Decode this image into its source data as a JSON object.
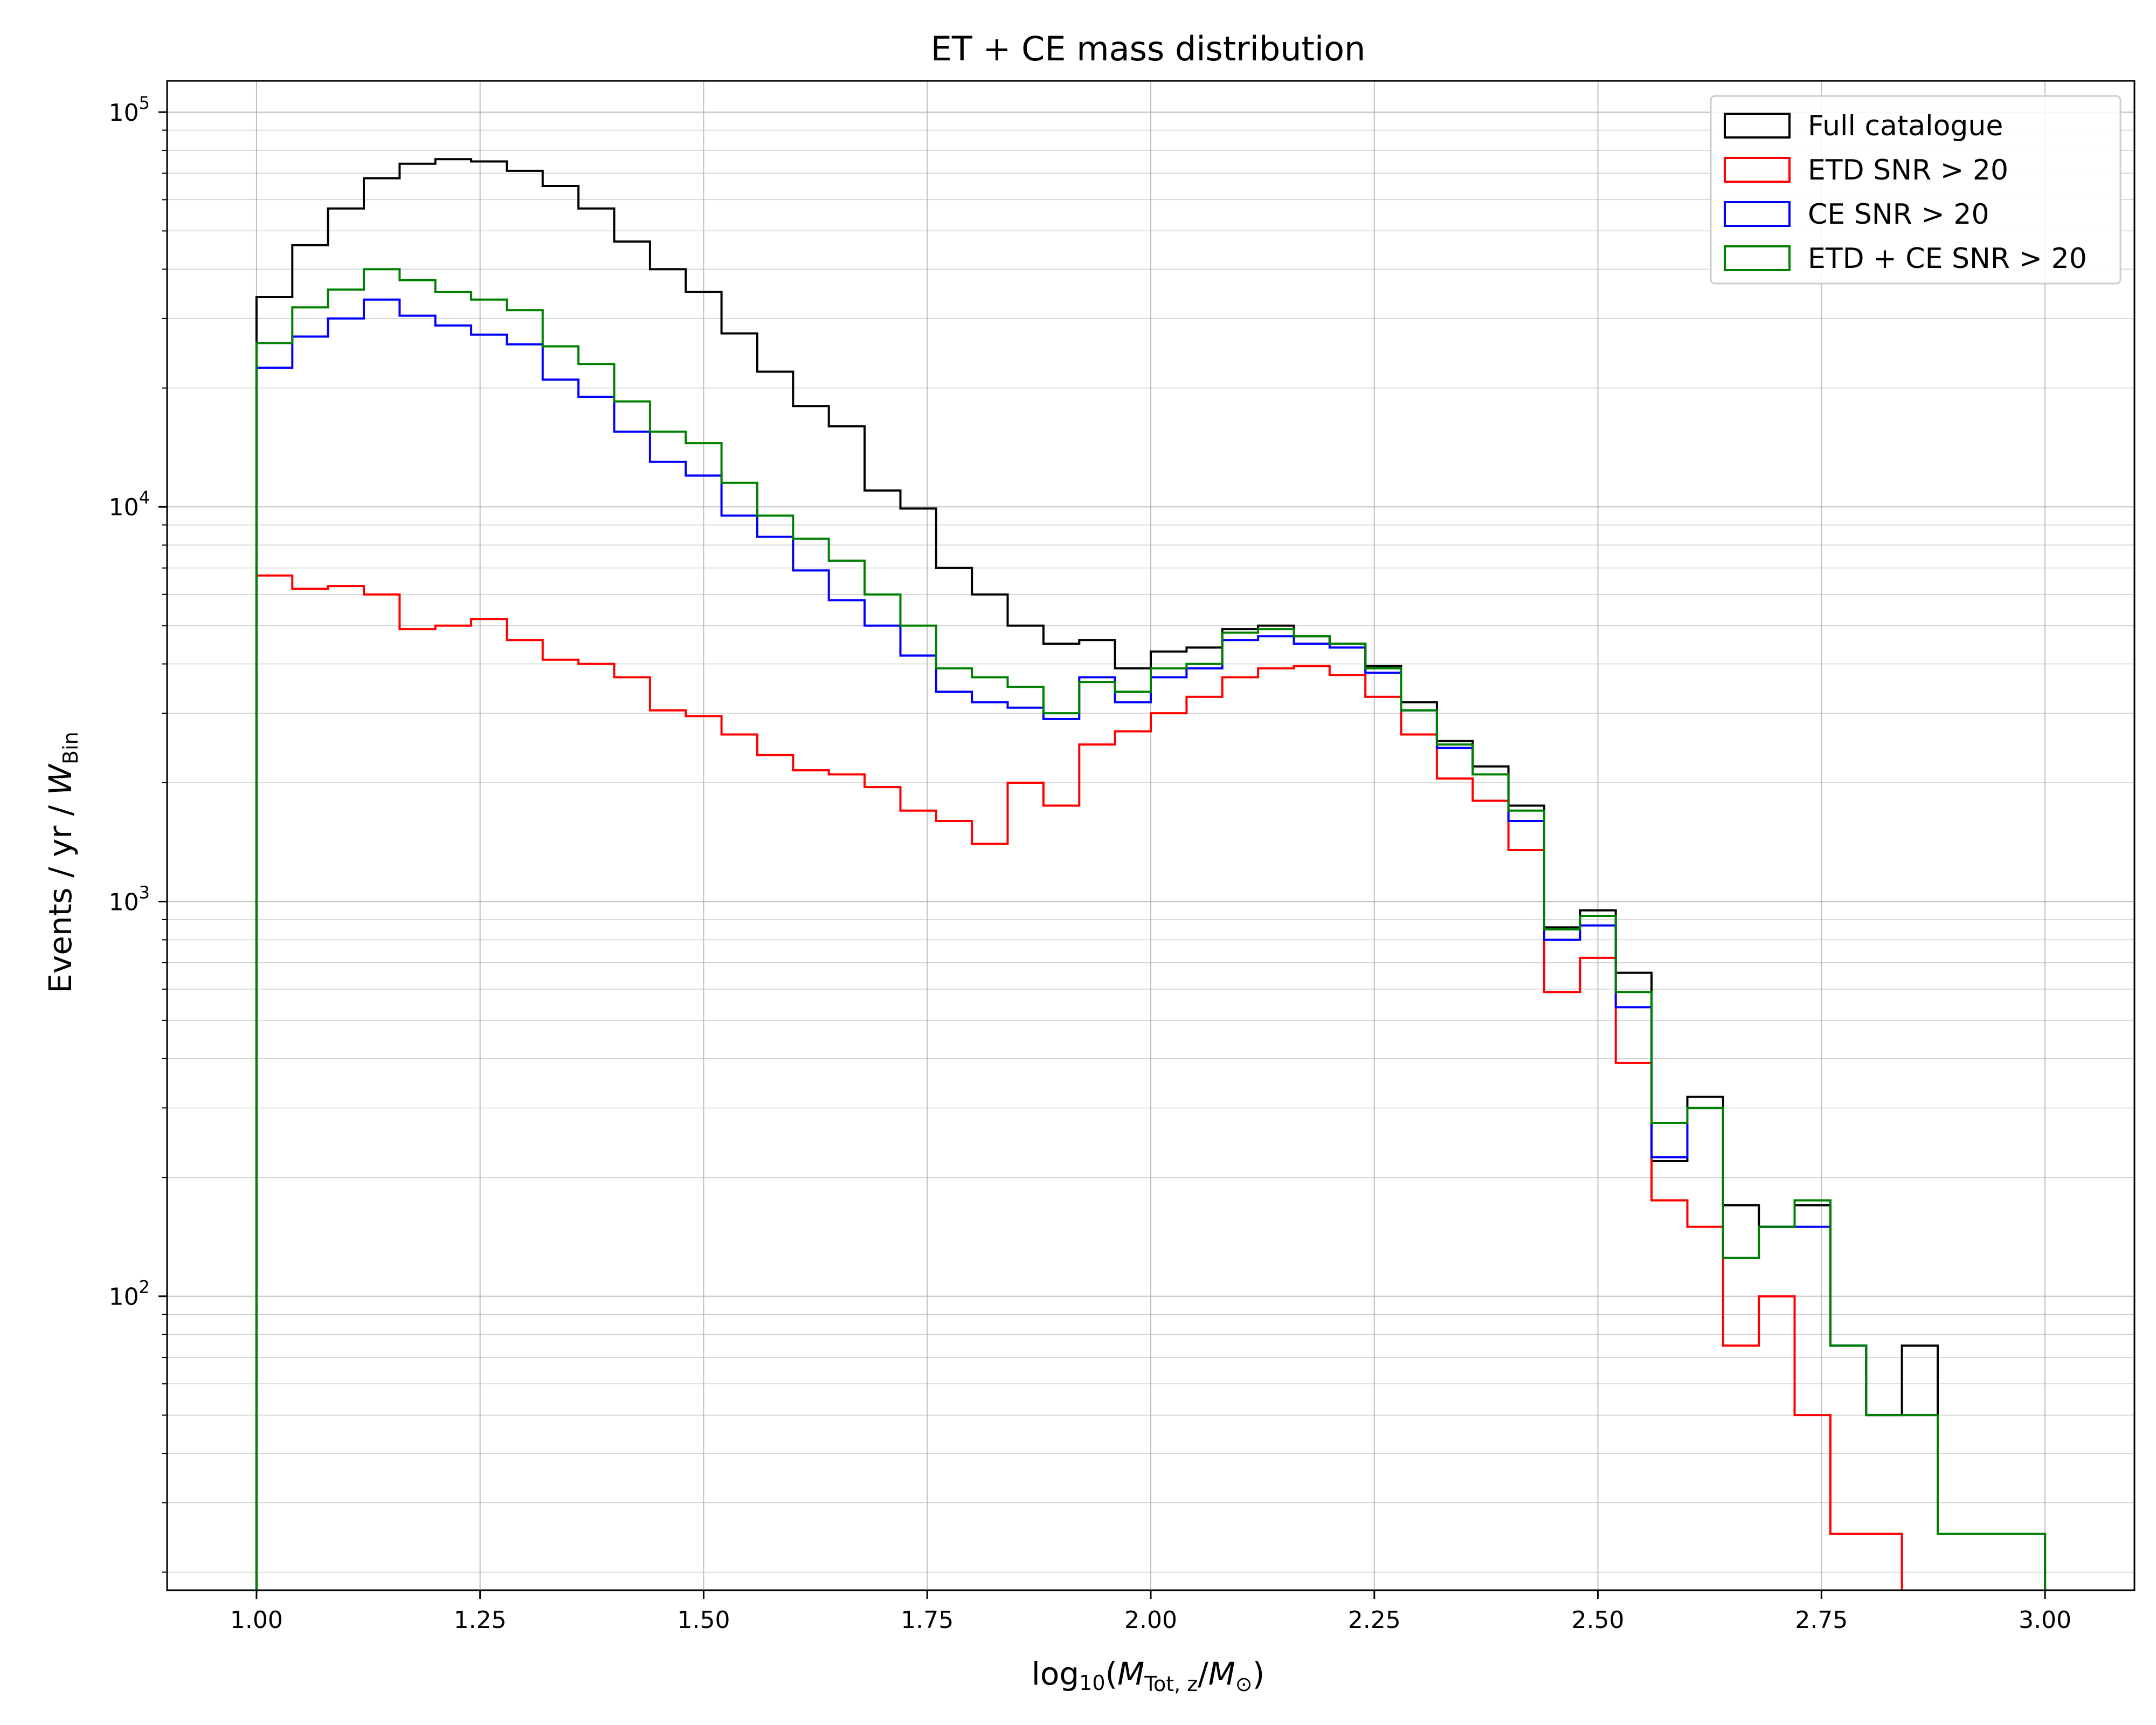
{
  "chart_data": {
    "type": "step-histogram",
    "title": "ET + CE mass distribution",
    "xlabel": {
      "prefix": "log",
      "prefix_sub": "10",
      "open": "(",
      "m1": "M",
      "m1_sub": "Tot, z",
      "slash": "/",
      "m2": "M",
      "m2_sub": "⊙",
      "close": ")"
    },
    "ylabel": {
      "text": "Events / yr / ",
      "w": "W",
      "w_sub": "Bin"
    },
    "xlim": [
      0.9,
      3.1
    ],
    "ylim": [
      18,
      120000
    ],
    "yscale": "log",
    "grid": true,
    "legend_position": "top-right",
    "x_ticks": [
      "1.00",
      "1.25",
      "1.50",
      "1.75",
      "2.00",
      "2.25",
      "2.50",
      "2.75",
      "3.00"
    ],
    "y_ticks": [
      {
        "base": "10",
        "exp": "2",
        "value": 100
      },
      {
        "base": "10",
        "exp": "3",
        "value": 1000
      },
      {
        "base": "10",
        "exp": "4",
        "value": 10000
      },
      {
        "base": "10",
        "exp": "5",
        "value": 100000
      }
    ],
    "bin_start": 1.0,
    "bin_width": 0.04,
    "series": [
      {
        "name": "Full catalogue",
        "color": "#000000",
        "values": [
          34000,
          46000,
          57000,
          68000,
          74000,
          76000,
          75000,
          71000,
          65000,
          57000,
          47000,
          40000,
          35000,
          27500,
          22000,
          18000,
          16000,
          11000,
          9900,
          7000,
          6000,
          5000,
          4500,
          4600,
          3900,
          4300,
          4400,
          4900,
          5000,
          4700,
          4500,
          3950,
          3200,
          2550,
          2200,
          1750,
          860,
          950,
          660,
          220,
          320,
          170,
          150,
          170,
          75,
          50,
          75,
          25,
          25,
          25
        ]
      },
      {
        "name": "ETD SNR > 20",
        "color": "#ff0000",
        "values": [
          6700,
          6200,
          6300,
          6000,
          4900,
          5000,
          5200,
          4600,
          4100,
          4000,
          3700,
          3050,
          2950,
          2650,
          2350,
          2150,
          2100,
          1950,
          1700,
          1600,
          1400,
          2000,
          1750,
          2500,
          2700,
          3000,
          3300,
          3700,
          3900,
          3950,
          3750,
          3300,
          2650,
          2050,
          1800,
          1350,
          590,
          720,
          390,
          175,
          150,
          75,
          100,
          50,
          25,
          25,
          null,
          null,
          null,
          null
        ]
      },
      {
        "name": "CE SNR > 20",
        "color": "#0000ff",
        "values": [
          22500,
          27000,
          30000,
          33500,
          30500,
          28800,
          27300,
          25800,
          21000,
          19000,
          15500,
          13000,
          12000,
          9500,
          8400,
          6900,
          5800,
          5000,
          4200,
          3400,
          3200,
          3100,
          2900,
          3700,
          3200,
          3700,
          3900,
          4600,
          4700,
          4500,
          4400,
          3800,
          3050,
          2450,
          2100,
          1600,
          800,
          870,
          540,
          225,
          300,
          125,
          150,
          150,
          75,
          50,
          50,
          25,
          25,
          25
        ]
      },
      {
        "name": "ETD + CE SNR > 20",
        "color": "#008000",
        "values": [
          26000,
          32000,
          35500,
          40000,
          37500,
          35000,
          33500,
          31500,
          25500,
          23000,
          18500,
          15500,
          14500,
          11500,
          9500,
          8300,
          7300,
          6000,
          5000,
          3900,
          3700,
          3500,
          3000,
          3600,
          3400,
          3900,
          4000,
          4800,
          4900,
          4700,
          4500,
          3900,
          3050,
          2500,
          2100,
          1700,
          850,
          920,
          590,
          275,
          300,
          125,
          150,
          175,
          75,
          50,
          50,
          25,
          25,
          25
        ]
      }
    ]
  }
}
